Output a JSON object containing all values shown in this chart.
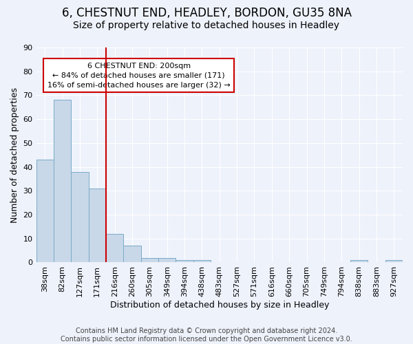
{
  "title1": "6, CHESTNUT END, HEADLEY, BORDON, GU35 8NA",
  "title2": "Size of property relative to detached houses in Headley",
  "xlabel": "Distribution of detached houses by size in Headley",
  "ylabel": "Number of detached properties",
  "bar_values": [
    43,
    68,
    38,
    31,
    12,
    7,
    2,
    2,
    1,
    1,
    0,
    0,
    0,
    0,
    0,
    0,
    0,
    0,
    1,
    0,
    1
  ],
  "bar_labels": [
    "38sqm",
    "82sqm",
    "127sqm",
    "171sqm",
    "216sqm",
    "260sqm",
    "305sqm",
    "349sqm",
    "394sqm",
    "438sqm",
    "483sqm",
    "527sqm",
    "571sqm",
    "616sqm",
    "660sqm",
    "705sqm",
    "749sqm",
    "794sqm",
    "838sqm",
    "883sqm",
    "927sqm"
  ],
  "bar_color": "#c8d8e8",
  "bar_edge_color": "#7aaac8",
  "background_color": "#eef2fb",
  "grid_color": "#ffffff",
  "red_line_x": 4.0,
  "red_line_color": "#cc0000",
  "annotation_line1": "6 CHESTNUT END: 200sqm",
  "annotation_line2": "← 84% of detached houses are smaller (171)",
  "annotation_line3": "16% of semi-detached houses are larger (32) →",
  "annotation_box_color": "#ffffff",
  "annotation_box_edge": "#cc0000",
  "ylim": [
    0,
    90
  ],
  "yticks": [
    0,
    10,
    20,
    30,
    40,
    50,
    60,
    70,
    80,
    90
  ],
  "footer": "Contains HM Land Registry data © Crown copyright and database right 2024.\nContains public sector information licensed under the Open Government Licence v3.0.",
  "title1_fontsize": 12,
  "title2_fontsize": 10,
  "xlabel_fontsize": 9,
  "ylabel_fontsize": 9,
  "tick_fontsize": 8,
  "annot_fontsize": 8,
  "footer_fontsize": 7
}
